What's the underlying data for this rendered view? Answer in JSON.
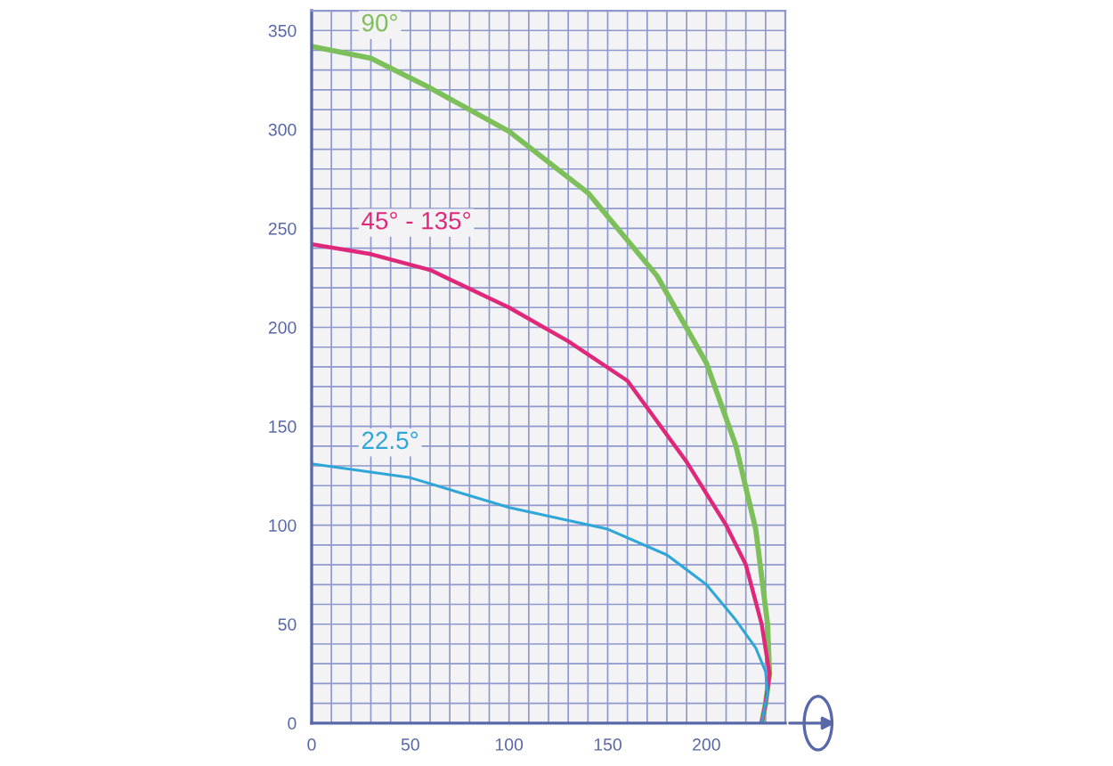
{
  "chart_data": {
    "type": "line",
    "xlim": [
      0,
      240
    ],
    "ylim": [
      0,
      360
    ],
    "xticks": [
      0,
      {
        "value": 10,
        "label": null
      },
      {
        "value": 20,
        "label": null
      },
      {
        "value": 30,
        "label": null
      },
      {
        "value": 40,
        "label": null
      },
      50,
      {
        "value": 60,
        "label": null
      },
      {
        "value": 70,
        "label": null
      },
      {
        "value": 80,
        "label": null
      },
      {
        "value": 90,
        "label": null
      },
      100,
      {
        "value": 110,
        "label": null
      },
      {
        "value": 120,
        "label": null
      },
      {
        "value": 130,
        "label": null
      },
      {
        "value": 140,
        "label": null
      },
      150,
      {
        "value": 160,
        "label": null
      },
      {
        "value": 170,
        "label": null
      },
      {
        "value": 180,
        "label": null
      },
      {
        "value": 190,
        "label": null
      },
      200,
      {
        "value": 210,
        "label": null
      },
      {
        "value": 220,
        "label": null
      },
      {
        "value": 230,
        "label": null
      }
    ],
    "yticks": [
      0,
      {
        "value": 10,
        "label": null
      },
      {
        "value": 20,
        "label": null
      },
      {
        "value": 30,
        "label": null
      },
      {
        "value": 40,
        "label": null
      },
      50,
      {
        "value": 60,
        "label": null
      },
      {
        "value": 70,
        "label": null
      },
      {
        "value": 80,
        "label": null
      },
      {
        "value": 90,
        "label": null
      },
      100,
      {
        "value": 110,
        "label": null
      },
      {
        "value": 120,
        "label": null
      },
      {
        "value": 130,
        "label": null
      },
      {
        "value": 140,
        "label": null
      },
      150,
      {
        "value": 160,
        "label": null
      },
      {
        "value": 170,
        "label": null
      },
      {
        "value": 180,
        "label": null
      },
      {
        "value": 190,
        "label": null
      },
      200,
      {
        "value": 210,
        "label": null
      },
      {
        "value": 220,
        "label": null
      },
      {
        "value": 230,
        "label": null
      },
      {
        "value": 240,
        "label": null
      },
      250,
      {
        "value": 260,
        "label": null
      },
      {
        "value": 270,
        "label": null
      },
      {
        "value": 280,
        "label": null
      },
      {
        "value": 290,
        "label": null
      },
      300,
      {
        "value": 310,
        "label": null
      },
      {
        "value": 320,
        "label": null
      },
      {
        "value": 330,
        "label": null
      },
      {
        "value": 340,
        "label": null
      },
      350
    ],
    "grid": true,
    "legend": false,
    "marker": "none",
    "line_style": "solid",
    "series": [
      {
        "name": "90°",
        "color": "#7dbf5a",
        "x": [
          0,
          30,
          60,
          100,
          140,
          175,
          200,
          215,
          225,
          231,
          232,
          230,
          228
        ],
        "values": [
          342,
          336,
          321,
          299,
          268,
          226,
          182,
          140,
          98,
          50,
          25,
          10,
          0
        ]
      },
      {
        "name": "45° - 135°",
        "color": "#e0287a",
        "x": [
          0,
          30,
          60,
          100,
          130,
          160,
          190,
          210,
          220,
          228,
          232,
          230,
          228
        ],
        "values": [
          242,
          237,
          229,
          210,
          193,
          173,
          132,
          100,
          80,
          50,
          25,
          10,
          0
        ]
      },
      {
        "name": "22.5°",
        "color": "#2ea6d8",
        "x": [
          0,
          50,
          100,
          150,
          180,
          200,
          215,
          225,
          230,
          231,
          228
        ],
        "values": [
          131,
          124,
          109,
          98,
          85,
          70,
          52,
          38,
          26,
          15,
          0
        ]
      }
    ]
  }
}
